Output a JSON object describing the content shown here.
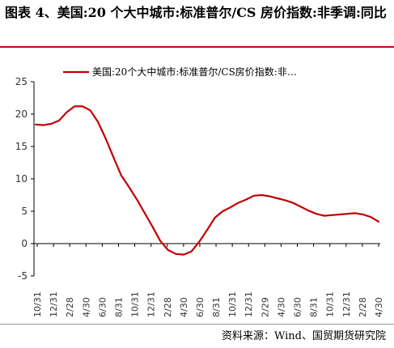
{
  "figure": {
    "title": "图表 4、美国:20 个大中城市:标准普尔/CS 房价指数:非季调:同比",
    "source": "资料来源：Wind、国贸期货研究院"
  },
  "chart_data": {
    "type": "line",
    "title": "",
    "xlabel": "",
    "ylabel": "",
    "ylim": [
      -5,
      25
    ],
    "yticks": [
      -5,
      0,
      5,
      10,
      15,
      20,
      25
    ],
    "xtick_labels": [
      "10/31",
      "12/31",
      "2/28",
      "4/30",
      "6/30",
      "8/31",
      "10/31",
      "12/31",
      "2/28",
      "4/30",
      "6/30",
      "8/31",
      "10/31",
      "12/31",
      "2/29",
      "4/30",
      "6/30",
      "8/31",
      "10/31",
      "12/31",
      "2/28",
      "4/30"
    ],
    "legend_position": "top",
    "grid": false,
    "color": "#c00000",
    "series": [
      {
        "name": "美国:20个大中城市:标准普尔/CS房价指数:非…",
        "values": [
          18.4,
          18.3,
          18.5,
          19.0,
          20.3,
          21.2,
          21.2,
          20.6,
          18.8,
          16.2,
          13.3,
          10.5,
          8.7,
          6.8,
          4.7,
          2.6,
          0.4,
          -1.0,
          -1.6,
          -1.7,
          -1.2,
          0.3,
          2.1,
          4.0,
          5.0,
          5.6,
          6.3,
          6.8,
          7.4,
          7.5,
          7.3,
          7.0,
          6.7,
          6.3,
          5.7,
          5.1,
          4.6,
          4.3,
          4.4,
          4.5,
          4.6,
          4.7,
          4.5,
          4.1,
          3.4
        ]
      }
    ]
  }
}
